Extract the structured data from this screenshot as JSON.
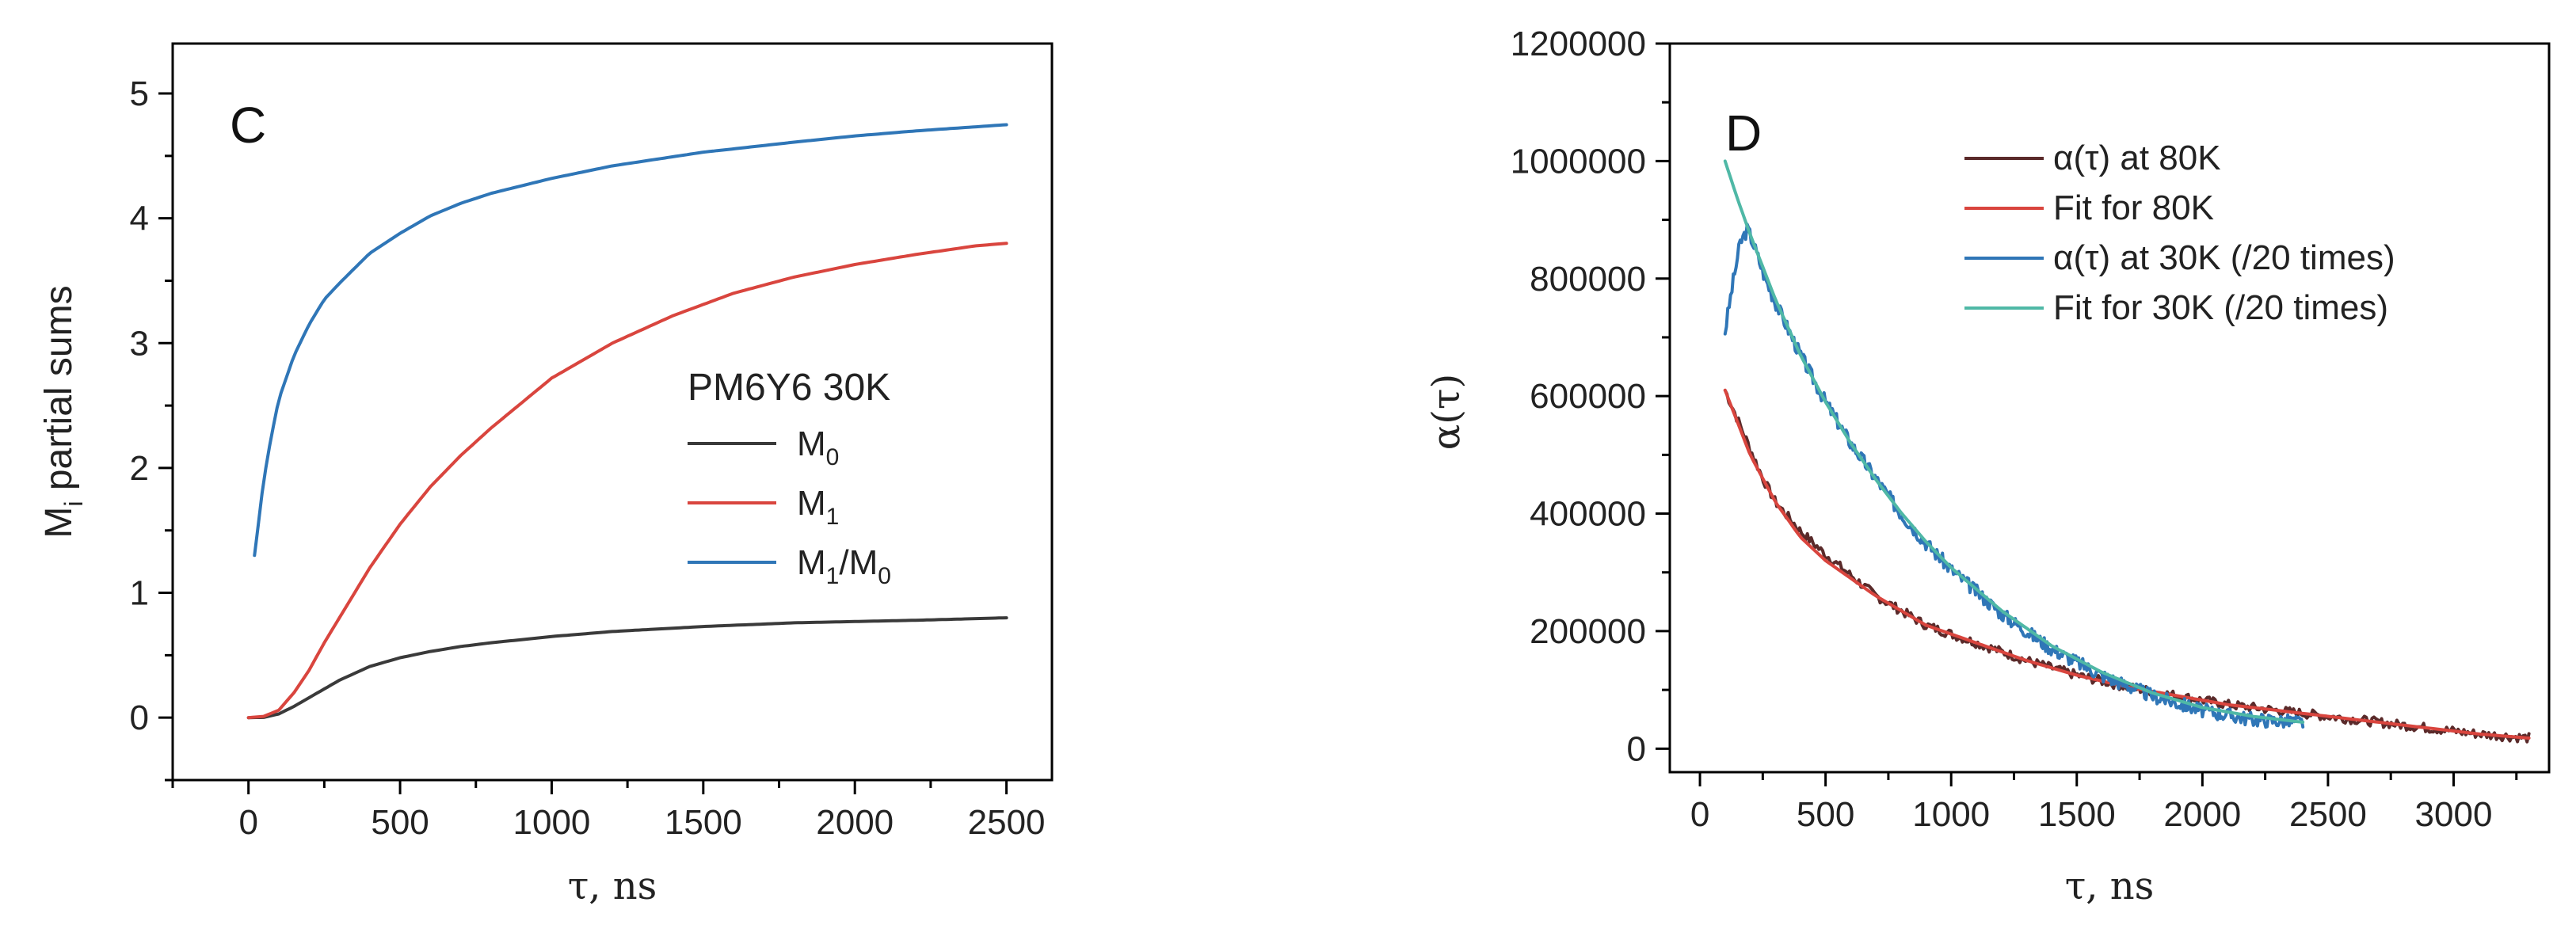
{
  "chart_data": [
    {
      "type": "line",
      "panel_label": "C",
      "xlabel": "τ, ns",
      "ylabel_main": "M",
      "ylabel_sub": "i",
      "ylabel_rest": " partial sums",
      "xlim": [
        -250,
        2650
      ],
      "ylim": [
        -0.5,
        5.4
      ],
      "xticks": [
        0,
        500,
        1000,
        1500,
        2000,
        2500
      ],
      "yticks": [
        0,
        1,
        2,
        3,
        4,
        5
      ],
      "legend_title": "PM6Y6 30K",
      "series": [
        {
          "name": "M0",
          "label_main": "M",
          "label_sub": "0",
          "label_rest": "",
          "color": "#3a3a3a",
          "x": [
            0,
            50,
            100,
            150,
            200,
            300,
            400,
            500,
            600,
            700,
            800,
            1000,
            1200,
            1500,
            1800,
            2000,
            2200,
            2500
          ],
          "y": [
            0,
            0.002,
            0.03,
            0.09,
            0.16,
            0.3,
            0.41,
            0.48,
            0.53,
            0.57,
            0.6,
            0.65,
            0.69,
            0.73,
            0.76,
            0.77,
            0.78,
            0.8
          ]
        },
        {
          "name": "M1",
          "label_main": "M",
          "label_sub": "1",
          "label_rest": "",
          "color": "#d9453e",
          "x": [
            0,
            50,
            100,
            150,
            200,
            250,
            300,
            400,
            500,
            600,
            700,
            800,
            1000,
            1200,
            1400,
            1600,
            1800,
            2000,
            2200,
            2400,
            2500
          ],
          "y": [
            0,
            0.01,
            0.06,
            0.2,
            0.38,
            0.6,
            0.8,
            1.2,
            1.55,
            1.85,
            2.1,
            2.32,
            2.72,
            3.0,
            3.22,
            3.4,
            3.53,
            3.63,
            3.71,
            3.78,
            3.8
          ]
        },
        {
          "name": "M1/M0",
          "label_main": "M",
          "label_sub": "1",
          "label_rest": "/M",
          "label_sub2": "0",
          "color": "#2f76b7",
          "x": [
            20,
            50,
            75,
            100,
            150,
            200,
            250,
            300,
            400,
            500,
            600,
            700,
            800,
            1000,
            1200,
            1500,
            1800,
            2000,
            2200,
            2500
          ],
          "y": [
            1.3,
            1.9,
            2.25,
            2.55,
            2.9,
            3.15,
            3.35,
            3.48,
            3.72,
            3.88,
            4.02,
            4.12,
            4.2,
            4.32,
            4.42,
            4.53,
            4.61,
            4.66,
            4.7,
            4.75
          ]
        }
      ]
    },
    {
      "type": "line",
      "panel_label": "D",
      "xlabel": "τ, ns",
      "ylabel": "α(τ)",
      "xlim": [
        -120,
        3380
      ],
      "ylim": [
        -40000,
        1200000
      ],
      "xticks": [
        0,
        500,
        1000,
        1500,
        2000,
        2500,
        3000
      ],
      "yticks": [
        0,
        200000,
        400000,
        600000,
        800000,
        1000000,
        1200000
      ],
      "series": [
        {
          "name": "α(τ) at 80K",
          "color": "#5a2a2a",
          "noise": 8000,
          "seed": 7,
          "x": [
            100,
            200,
            250,
            300,
            400,
            500,
            700,
            900,
            1100,
            1300,
            1500,
            1700,
            1900,
            2100,
            2300,
            2500,
            2700,
            2900,
            3100,
            3300
          ],
          "y": [
            610000,
            510000,
            460000,
            420000,
            370000,
            330000,
            260000,
            210000,
            180000,
            150000,
            125000,
            105000,
            90000,
            75000,
            65000,
            55000,
            45000,
            35000,
            25000,
            18000
          ]
        },
        {
          "name": "Fit for 80K",
          "color": "#d9453e",
          "noise": 0,
          "seed": 0,
          "x": [
            100,
            200,
            300,
            400,
            500,
            700,
            900,
            1100,
            1300,
            1500,
            1700,
            1900,
            2100,
            2300,
            2500,
            2700,
            2900,
            3100,
            3300
          ],
          "y": [
            610000,
            500000,
            420000,
            360000,
            320000,
            260000,
            210000,
            180000,
            150000,
            125000,
            105000,
            90000,
            75000,
            65000,
            55000,
            45000,
            35000,
            25000,
            18000
          ]
        },
        {
          "name": "α(τ) at 30K (/20 times)",
          "color": "#2f76b7",
          "noise": 12000,
          "seed": 3,
          "x": [
            100,
            130,
            160,
            190,
            220,
            260,
            300,
            400,
            500,
            600,
            700,
            800,
            900,
            1000,
            1200,
            1400,
            1600,
            1800,
            2000,
            2200,
            2400
          ],
          "y": [
            710000,
            790000,
            860000,
            885000,
            850000,
            800000,
            760000,
            670000,
            590000,
            520000,
            460000,
            400000,
            350000,
            305000,
            230000,
            170000,
            125000,
            90000,
            65000,
            50000,
            45000
          ]
        },
        {
          "name": "Fit for 30K (/20 times)",
          "color": "#4fb8a6",
          "noise": 0,
          "seed": 0,
          "x": [
            100,
            150,
            200,
            250,
            300,
            400,
            500,
            600,
            700,
            800,
            900,
            1000,
            1200,
            1400,
            1600,
            1800,
            2000,
            2200,
            2400
          ],
          "y": [
            1000000,
            935000,
            875000,
            820000,
            765000,
            670000,
            590000,
            520000,
            458000,
            402000,
            352000,
            308000,
            235000,
            175000,
            130000,
            95000,
            70000,
            55000,
            45000
          ]
        }
      ]
    }
  ]
}
